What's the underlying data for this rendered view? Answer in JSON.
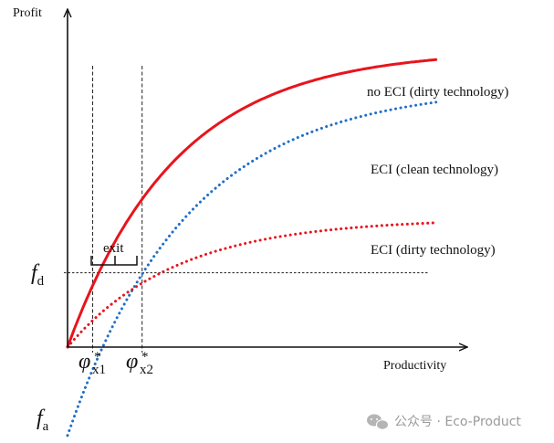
{
  "chart_data": {
    "type": "line",
    "title": "",
    "xlabel": "Productivity",
    "ylabel": "Profit",
    "xlim": [
      0,
      10
    ],
    "ylim": [
      -2.2,
      7.6
    ],
    "series": [
      {
        "name": "no ECI (dirty technology)",
        "color": "#e8141c",
        "style": "solid",
        "intercept": 0.0,
        "asymptote": 7.4,
        "rate": 0.4
      },
      {
        "name": "ECI (clean technology)",
        "color": "#1f6fc5",
        "style": "dotted",
        "intercept": -2.2,
        "asymptote": 6.5,
        "rate": 0.36
      },
      {
        "name": "ECI (dirty technology)",
        "color": "#e8141c",
        "style": "dotted",
        "intercept": 0.0,
        "asymptote": 3.2,
        "rate": 0.4
      }
    ],
    "reference_levels": {
      "f_d": {
        "symbol": "f",
        "subscript": "d",
        "value": 1.85
      },
      "f_a": {
        "symbol": "f",
        "subscript": "a",
        "value": -2.2
      }
    },
    "thresholds": [
      {
        "symbol": "φ",
        "subscript": "x1",
        "superscript": "*",
        "x": 0.58
      },
      {
        "symbol": "φ",
        "subscript": "x2",
        "superscript": "*",
        "x": 1.72
      }
    ],
    "annotation": {
      "text": "exit"
    }
  },
  "watermark": {
    "text": "公众号 · Eco-Product"
  }
}
